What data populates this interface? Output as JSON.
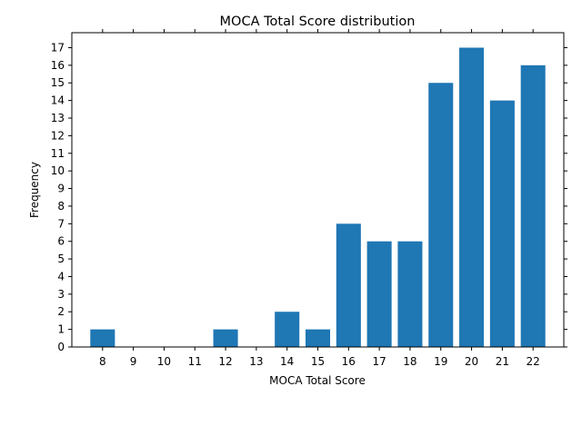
{
  "chart_data": {
    "type": "bar",
    "title": "MOCA Total Score distribution",
    "xlabel": "MOCA Total Score",
    "ylabel": "Frequency",
    "x": [
      8,
      9,
      10,
      11,
      12,
      13,
      14,
      15,
      16,
      17,
      18,
      19,
      20,
      21,
      22
    ],
    "values": [
      1,
      0,
      0,
      0,
      1,
      0,
      2,
      1,
      7,
      6,
      6,
      15,
      17,
      14,
      16
    ],
    "xlim": [
      7,
      23
    ],
    "ylim": [
      0,
      17.85
    ],
    "yticks": [
      0,
      1,
      2,
      3,
      4,
      5,
      6,
      7,
      8,
      9,
      10,
      11,
      12,
      13,
      14,
      15,
      16,
      17
    ],
    "bar_color": "#1f77b4",
    "grid": false,
    "legend": "none"
  }
}
